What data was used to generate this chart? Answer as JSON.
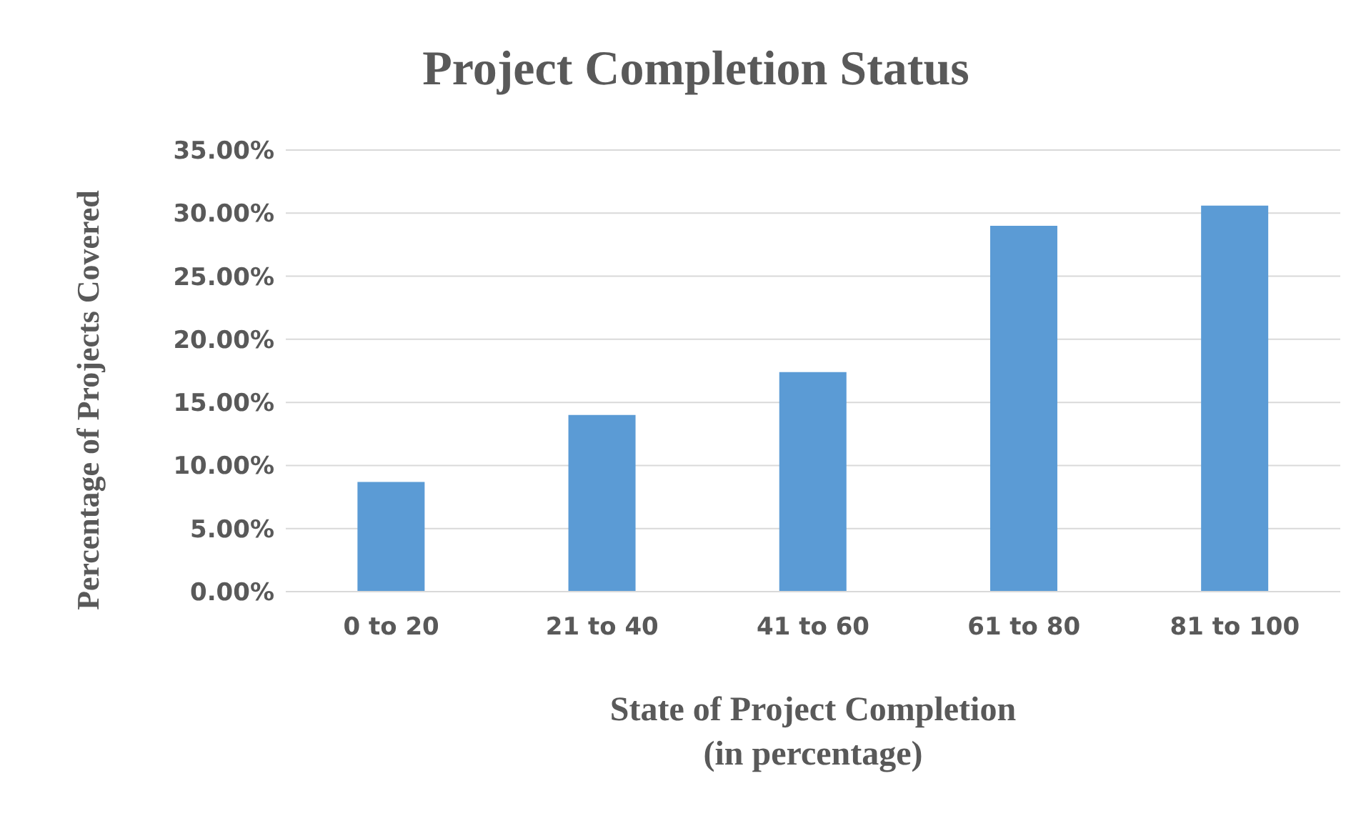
{
  "chart_data": {
    "type": "bar",
    "title": "Project Completion Status",
    "xlabel": "State of Project Completion\n(in percentage)",
    "ylabel": "Percentage of Projects Covered",
    "categories": [
      "0 to 20",
      "21 to 40",
      "41 to 60",
      "61 to 80",
      "81 to 100"
    ],
    "values": [
      8.7,
      14.0,
      17.4,
      29.0,
      30.6
    ],
    "color": "#5b9bd5",
    "ylim": [
      0,
      35
    ],
    "yticks": [
      {
        "value": 0,
        "label": "0.00%"
      },
      {
        "value": 5,
        "label": "5.00%"
      },
      {
        "value": 10,
        "label": "10.00%"
      },
      {
        "value": 15,
        "label": "15.00%"
      },
      {
        "value": 20,
        "label": "20.00%"
      },
      {
        "value": 25,
        "label": "25.00%"
      },
      {
        "value": 30,
        "label": "30.00%"
      },
      {
        "value": 35,
        "label": "35.00%"
      }
    ],
    "grid": "y",
    "legend": false
  }
}
